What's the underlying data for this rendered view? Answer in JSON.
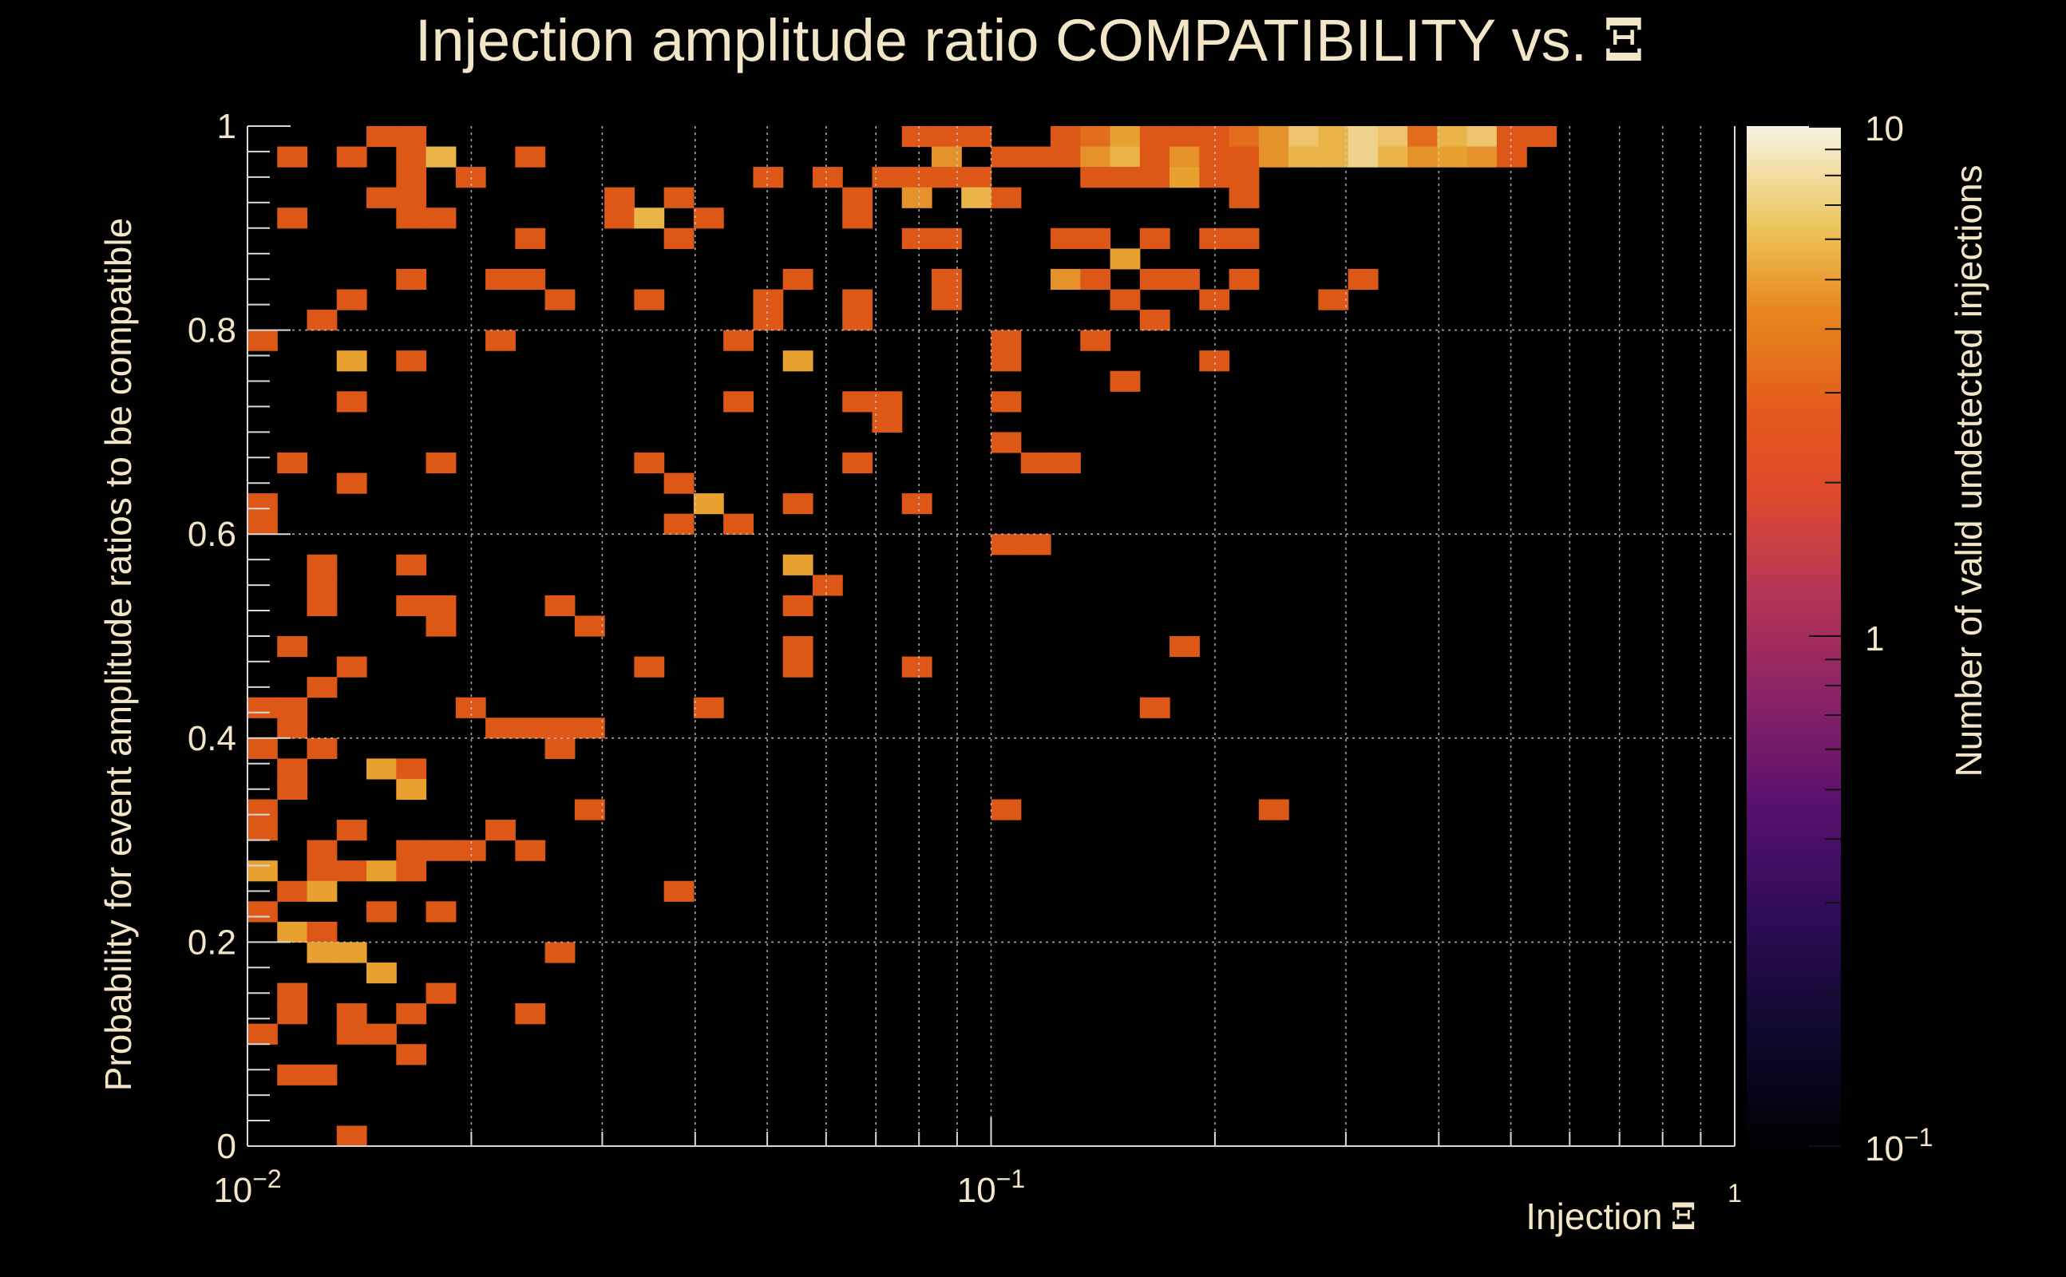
{
  "chart_data": {
    "type": "heatmap",
    "title": "Injection amplitude ratio COMPATIBILITY vs.",
    "title_symbol": "Ξ",
    "xlabel": "Injection",
    "xlabel_symbol": "Ξ",
    "ylabel": "Probability for event amplitude ratios to be compatible",
    "zlabel": "Number of valid undetected injections",
    "x_scale": "log",
    "xlim": [
      0.01,
      1
    ],
    "ylim": [
      0,
      1
    ],
    "zlim": [
      0.1,
      10
    ],
    "z_scale": "log",
    "grid": true,
    "nbins_x": 50,
    "nbins_y": 50,
    "x_tick_labels": [
      {
        "value": 0.01,
        "base": "10",
        "exp": "−2"
      },
      {
        "value": 0.1,
        "base": "10",
        "exp": "−1"
      },
      {
        "value": 1,
        "base": "",
        "exp": "1"
      }
    ],
    "y_tick_labels": [
      "0",
      "0.2",
      "0.4",
      "0.6",
      "0.8",
      "1"
    ],
    "y_tick_values": [
      0,
      0.2,
      0.4,
      0.6,
      0.8,
      1
    ],
    "z_tick_labels": [
      {
        "value": 0.1,
        "base": "10",
        "exp": "−1"
      },
      {
        "value": 1,
        "base": "1",
        "exp": ""
      },
      {
        "value": 10,
        "base": "10",
        "exp": ""
      }
    ],
    "colors": {
      "background": "#000000",
      "text": "#f3e6c8",
      "grid": "#cfcfcf",
      "palette": [
        "#000004",
        "#1b0c41",
        "#4a0c6b",
        "#781c6d",
        "#a52c60",
        "#cf4446",
        "#ed6925",
        "#fb9b06",
        "#f7d13d",
        "#fcffa4"
      ]
    },
    "cells": [
      [
        4,
        49,
        1
      ],
      [
        5,
        49,
        1
      ],
      [
        22,
        49,
        1
      ],
      [
        23,
        49,
        1
      ],
      [
        24,
        49,
        1
      ],
      [
        27,
        49,
        1
      ],
      [
        28,
        49,
        1.3
      ],
      [
        29,
        49,
        2.5
      ],
      [
        30,
        49,
        1
      ],
      [
        31,
        49,
        1
      ],
      [
        32,
        49,
        1
      ],
      [
        33,
        49,
        1.3
      ],
      [
        34,
        49,
        2
      ],
      [
        35,
        49,
        3.5
      ],
      [
        36,
        49,
        3
      ],
      [
        37,
        49,
        4
      ],
      [
        38,
        49,
        3.5
      ],
      [
        39,
        49,
        1.3
      ],
      [
        40,
        49,
        3
      ],
      [
        41,
        49,
        3.5
      ],
      [
        42,
        49,
        1
      ],
      [
        43,
        49,
        1
      ],
      [
        1,
        48,
        1
      ],
      [
        3,
        48,
        1
      ],
      [
        5,
        48,
        1
      ],
      [
        6,
        48,
        3
      ],
      [
        9,
        48,
        1
      ],
      [
        23,
        48,
        2
      ],
      [
        25,
        48,
        1
      ],
      [
        26,
        48,
        1
      ],
      [
        27,
        48,
        1
      ],
      [
        28,
        48,
        2
      ],
      [
        29,
        48,
        3
      ],
      [
        30,
        48,
        1
      ],
      [
        31,
        48,
        2
      ],
      [
        32,
        48,
        1
      ],
      [
        33,
        48,
        1
      ],
      [
        34,
        48,
        2
      ],
      [
        35,
        48,
        3
      ],
      [
        36,
        48,
        3
      ],
      [
        37,
        48,
        4
      ],
      [
        38,
        48,
        3
      ],
      [
        39,
        48,
        2
      ],
      [
        40,
        48,
        2.5
      ],
      [
        41,
        48,
        2
      ],
      [
        42,
        48,
        1
      ],
      [
        5,
        47,
        1
      ],
      [
        7,
        47,
        1
      ],
      [
        17,
        47,
        1
      ],
      [
        19,
        47,
        1
      ],
      [
        21,
        47,
        1
      ],
      [
        22,
        47,
        1
      ],
      [
        23,
        47,
        1
      ],
      [
        24,
        47,
        1
      ],
      [
        28,
        47,
        1
      ],
      [
        29,
        47,
        1
      ],
      [
        30,
        47,
        1
      ],
      [
        31,
        47,
        2.5
      ],
      [
        32,
        47,
        1
      ],
      [
        33,
        47,
        1
      ],
      [
        4,
        46,
        1
      ],
      [
        5,
        46,
        1
      ],
      [
        12,
        46,
        1
      ],
      [
        14,
        46,
        1
      ],
      [
        20,
        46,
        1
      ],
      [
        22,
        46,
        2
      ],
      [
        24,
        46,
        3
      ],
      [
        25,
        46,
        1
      ],
      [
        33,
        46,
        1
      ],
      [
        1,
        45,
        1
      ],
      [
        5,
        45,
        1
      ],
      [
        6,
        45,
        1
      ],
      [
        12,
        45,
        1
      ],
      [
        13,
        45,
        3
      ],
      [
        15,
        45,
        1
      ],
      [
        20,
        45,
        1
      ],
      [
        9,
        44,
        1
      ],
      [
        14,
        44,
        1
      ],
      [
        22,
        44,
        1
      ],
      [
        23,
        44,
        1
      ],
      [
        27,
        44,
        1
      ],
      [
        28,
        44,
        1
      ],
      [
        30,
        44,
        1
      ],
      [
        32,
        44,
        1
      ],
      [
        33,
        44,
        1
      ],
      [
        29,
        43,
        2.5
      ],
      [
        5,
        42,
        1
      ],
      [
        8,
        42,
        1
      ],
      [
        9,
        42,
        1
      ],
      [
        18,
        42,
        1
      ],
      [
        23,
        42,
        1
      ],
      [
        27,
        42,
        2
      ],
      [
        28,
        42,
        1
      ],
      [
        30,
        42,
        1
      ],
      [
        31,
        42,
        1
      ],
      [
        33,
        42,
        1
      ],
      [
        37,
        42,
        1
      ],
      [
        3,
        41,
        1
      ],
      [
        10,
        41,
        1
      ],
      [
        13,
        41,
        1
      ],
      [
        17,
        41,
        1
      ],
      [
        20,
        41,
        1
      ],
      [
        23,
        41,
        1
      ],
      [
        29,
        41,
        1
      ],
      [
        32,
        41,
        1
      ],
      [
        36,
        41,
        1
      ],
      [
        2,
        40,
        1
      ],
      [
        17,
        40,
        1
      ],
      [
        20,
        40,
        1
      ],
      [
        30,
        40,
        1
      ],
      [
        0,
        39,
        1
      ],
      [
        8,
        39,
        1
      ],
      [
        16,
        39,
        1
      ],
      [
        25,
        39,
        1
      ],
      [
        28,
        39,
        1
      ],
      [
        3,
        38,
        2.5
      ],
      [
        5,
        38,
        1
      ],
      [
        18,
        38,
        2.5
      ],
      [
        25,
        38,
        1
      ],
      [
        32,
        38,
        1
      ],
      [
        29,
        37,
        1
      ],
      [
        3,
        36,
        1
      ],
      [
        16,
        36,
        1
      ],
      [
        20,
        36,
        1
      ],
      [
        21,
        36,
        1
      ],
      [
        25,
        36,
        1
      ],
      [
        21,
        35,
        1
      ],
      [
        25,
        34,
        1
      ],
      [
        1,
        33,
        1
      ],
      [
        6,
        33,
        1
      ],
      [
        13,
        33,
        1
      ],
      [
        20,
        33,
        1
      ],
      [
        26,
        33,
        1
      ],
      [
        27,
        33,
        1
      ],
      [
        3,
        32,
        1
      ],
      [
        14,
        32,
        1
      ],
      [
        0,
        31,
        1
      ],
      [
        15,
        31,
        2.5
      ],
      [
        18,
        31,
        1
      ],
      [
        22,
        31,
        1
      ],
      [
        0,
        30,
        1
      ],
      [
        14,
        30,
        1
      ],
      [
        16,
        30,
        1
      ],
      [
        25,
        29,
        1
      ],
      [
        26,
        29,
        1
      ],
      [
        2,
        28,
        1
      ],
      [
        5,
        28,
        1
      ],
      [
        18,
        28,
        2.5
      ],
      [
        2,
        27,
        1
      ],
      [
        19,
        27,
        1
      ],
      [
        2,
        26,
        1
      ],
      [
        5,
        26,
        1
      ],
      [
        6,
        26,
        1
      ],
      [
        10,
        26,
        1
      ],
      [
        18,
        26,
        1
      ],
      [
        6,
        25,
        1
      ],
      [
        11,
        25,
        1
      ],
      [
        1,
        24,
        1
      ],
      [
        18,
        24,
        1
      ],
      [
        31,
        24,
        1
      ],
      [
        3,
        23,
        1
      ],
      [
        13,
        23,
        1
      ],
      [
        18,
        23,
        1
      ],
      [
        22,
        23,
        1
      ],
      [
        2,
        22,
        1
      ],
      [
        0,
        21,
        1
      ],
      [
        1,
        21,
        1
      ],
      [
        7,
        21,
        1
      ],
      [
        15,
        21,
        1
      ],
      [
        30,
        21,
        1
      ],
      [
        1,
        20,
        1
      ],
      [
        8,
        20,
        1
      ],
      [
        9,
        20,
        1
      ],
      [
        10,
        20,
        1
      ],
      [
        11,
        20,
        1
      ],
      [
        0,
        19,
        1
      ],
      [
        2,
        19,
        1
      ],
      [
        10,
        19,
        1
      ],
      [
        1,
        18,
        1
      ],
      [
        4,
        18,
        2.5
      ],
      [
        5,
        18,
        1
      ],
      [
        1,
        17,
        1
      ],
      [
        5,
        17,
        2.5
      ],
      [
        0,
        16,
        1
      ],
      [
        11,
        16,
        1
      ],
      [
        25,
        16,
        1
      ],
      [
        34,
        16,
        1
      ],
      [
        0,
        15,
        1
      ],
      [
        3,
        15,
        1
      ],
      [
        8,
        15,
        1
      ],
      [
        2,
        14,
        1
      ],
      [
        5,
        14,
        1
      ],
      [
        6,
        14,
        1
      ],
      [
        7,
        14,
        1
      ],
      [
        9,
        14,
        1
      ],
      [
        0,
        13,
        2.5
      ],
      [
        2,
        13,
        1
      ],
      [
        3,
        13,
        1
      ],
      [
        4,
        13,
        2.5
      ],
      [
        5,
        13,
        1
      ],
      [
        1,
        12,
        1
      ],
      [
        2,
        12,
        2.5
      ],
      [
        14,
        12,
        1
      ],
      [
        0,
        11,
        1
      ],
      [
        4,
        11,
        1
      ],
      [
        6,
        11,
        1
      ],
      [
        1,
        10,
        2.5
      ],
      [
        2,
        10,
        1
      ],
      [
        2,
        9,
        2.5
      ],
      [
        3,
        9,
        2.5
      ],
      [
        10,
        9,
        1
      ],
      [
        4,
        8,
        2.5
      ],
      [
        1,
        7,
        1
      ],
      [
        6,
        7,
        1
      ],
      [
        1,
        6,
        1
      ],
      [
        3,
        6,
        1
      ],
      [
        5,
        6,
        1
      ],
      [
        9,
        6,
        1
      ],
      [
        0,
        5,
        1
      ],
      [
        3,
        5,
        1
      ],
      [
        4,
        5,
        1
      ],
      [
        5,
        4,
        1
      ],
      [
        1,
        3,
        1
      ],
      [
        2,
        3,
        1
      ],
      [
        3,
        0,
        1
      ]
    ]
  }
}
